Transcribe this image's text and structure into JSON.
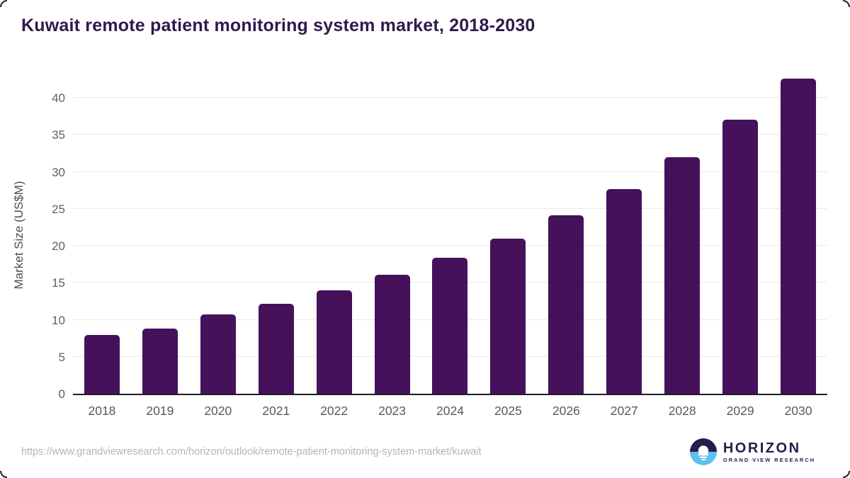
{
  "title": "Kuwait remote patient monitoring system market, 2018-2030",
  "source_url": "https://www.grandviewresearch.com/horizon/outlook/remote-patient-monitoring-system-market/kuwait",
  "logo": {
    "name": "HORIZON",
    "subtitle": "GRAND VIEW RESEARCH"
  },
  "colors": {
    "bar": "#45115a",
    "title": "#2f1a4b",
    "tick_label": "#57585a",
    "gridline": "#e9e9e9",
    "axis_line": "#1d1d1d",
    "source_url": "#b4b4b4",
    "logo_dark": "#2b1b4a",
    "logo_blue": "#5fc2ee"
  },
  "chart_data": {
    "type": "bar",
    "title": "Kuwait remote patient monitoring system market, 2018-2030",
    "categories": [
      "2018",
      "2019",
      "2020",
      "2021",
      "2022",
      "2023",
      "2024",
      "2025",
      "2026",
      "2027",
      "2028",
      "2029",
      "2030"
    ],
    "values": [
      7.9,
      8.8,
      10.7,
      12.2,
      14.0,
      16.1,
      18.4,
      21.0,
      24.1,
      27.7,
      32.0,
      37.0,
      42.6
    ],
    "xlabel": "",
    "ylabel": "Market Size (US$M)",
    "ylim": [
      0,
      45
    ],
    "yticks": [
      0,
      5,
      10,
      15,
      20,
      25,
      30,
      35,
      40
    ],
    "grid": true,
    "legend_position": "none",
    "bar_corner_radius": "rounded-top"
  }
}
